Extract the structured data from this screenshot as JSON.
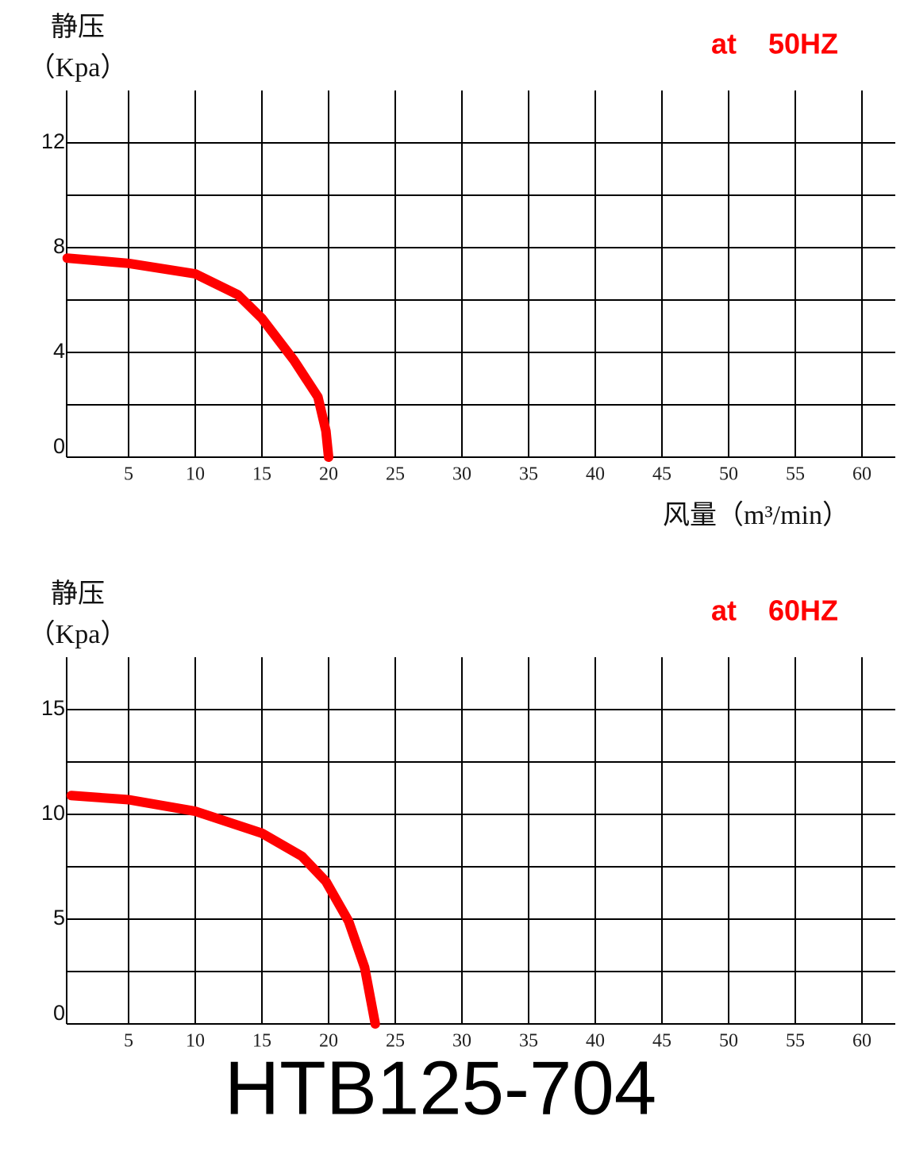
{
  "chart_data": [
    {
      "type": "line",
      "title": "at    50HZ",
      "ylabel": "静压",
      "yunit": "（Kpa）",
      "xlabel": "风量（m³/min）",
      "color": "#ff0000",
      "x": [
        0.4,
        5,
        10,
        13.2,
        15,
        17.4,
        19.2,
        19.8,
        20
      ],
      "values": [
        7.6,
        7.4,
        7.0,
        6.2,
        5.3,
        3.7,
        2.3,
        1.0,
        0
      ],
      "xlim": [
        0,
        62.5
      ],
      "xticks": [
        5,
        10,
        15,
        20,
        25,
        30,
        35,
        40,
        45,
        50,
        55,
        60
      ],
      "ylim": [
        0,
        14
      ],
      "yticks": [
        0,
        4,
        8,
        12
      ],
      "ygrid": [
        0,
        2,
        4,
        6,
        8,
        10,
        12
      ],
      "grid": true
    },
    {
      "type": "line",
      "title": "at    60HZ",
      "ylabel": "静压",
      "yunit": "（Kpa）",
      "color": "#ff0000",
      "x": [
        0.7,
        5,
        10,
        15,
        18,
        19.8,
        21.5,
        22.7,
        23.5
      ],
      "values": [
        10.9,
        10.7,
        10.15,
        9.1,
        8.0,
        6.8,
        4.9,
        2.7,
        0
      ],
      "xlim": [
        0,
        62.5
      ],
      "xticks": [
        5,
        10,
        15,
        20,
        25,
        30,
        35,
        40,
        45,
        50,
        55,
        60
      ],
      "ylim": [
        0,
        17.5
      ],
      "yticks": [
        0,
        5,
        10,
        15
      ],
      "ygrid": [
        0,
        2.5,
        5,
        7.5,
        10,
        12.5,
        15
      ],
      "grid": true
    }
  ],
  "caption": "HTB125-704"
}
